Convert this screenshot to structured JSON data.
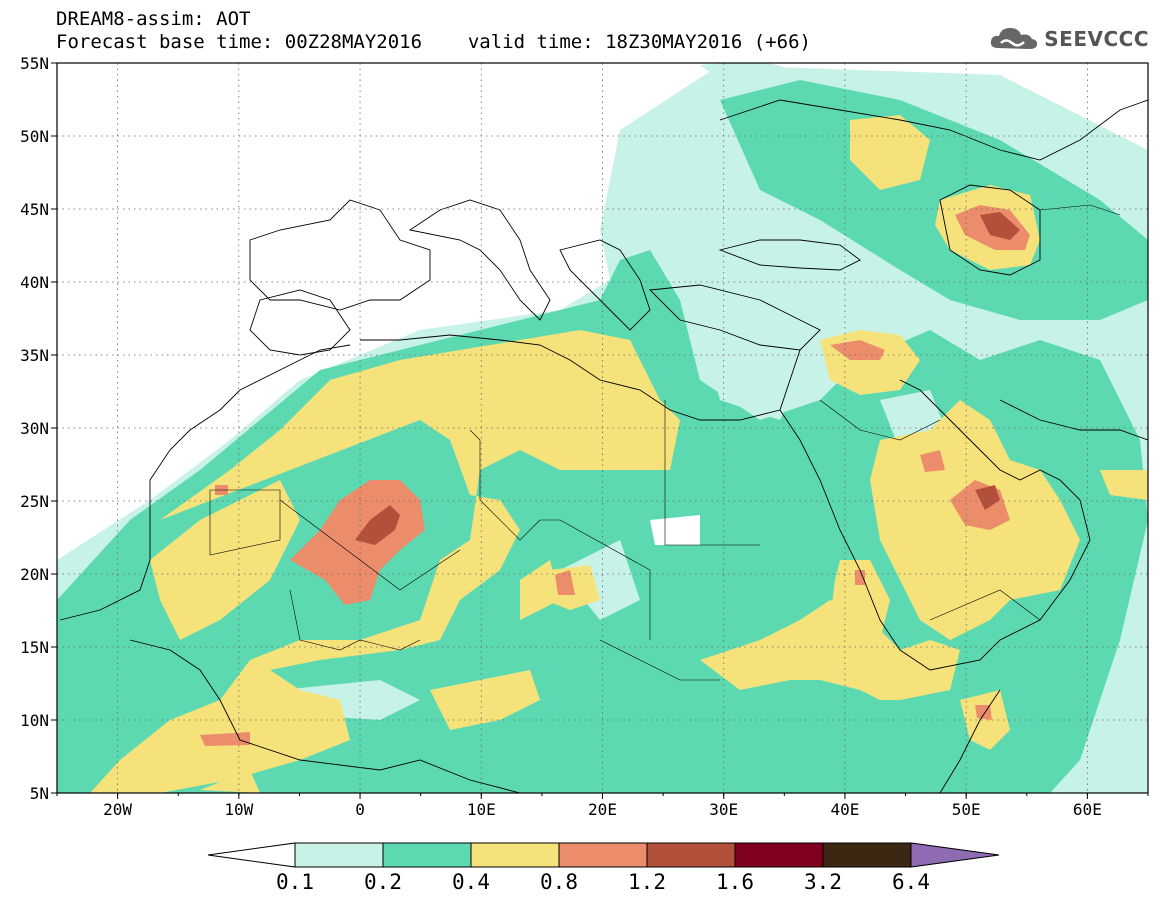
{
  "header": {
    "product": "DREAM8-assim: AOT",
    "base_time_label": "Forecast base time: 00Z28MAY2016",
    "valid_time_label": "valid time: 18Z30MAY2016 (+66)",
    "logo_text": "SEEVCCC"
  },
  "map": {
    "lat_labels": [
      "55N",
      "50N",
      "45N",
      "40N",
      "35N",
      "30N",
      "25N",
      "20N",
      "15N",
      "10N",
      "5N"
    ],
    "lon_labels": [
      "20W",
      "10W",
      "0",
      "10E",
      "20E",
      "30E",
      "40E",
      "50E",
      "60E"
    ],
    "extent": {
      "lon": [
        -25,
        65
      ],
      "lat": [
        5,
        55
      ]
    },
    "grid": "dotted"
  },
  "colorbar": {
    "levels": [
      "0.1",
      "0.2",
      "0.4",
      "0.8",
      "1.2",
      "1.6",
      "3.2",
      "6.4"
    ],
    "colors": [
      "#ffffff",
      "#c7f2e8",
      "#5dd9b2",
      "#f6e27a",
      "#eb8c6b",
      "#b3503c",
      "#800020",
      "#3b2712",
      "#8f6bb3"
    ]
  },
  "colors": {
    "class_0_2": "#c7f2e8",
    "class_2_4": "#5dd9b2",
    "class_4_8": "#f6e27a",
    "class_8_12": "#eb8c6b",
    "class_12_16": "#b3503c"
  }
}
